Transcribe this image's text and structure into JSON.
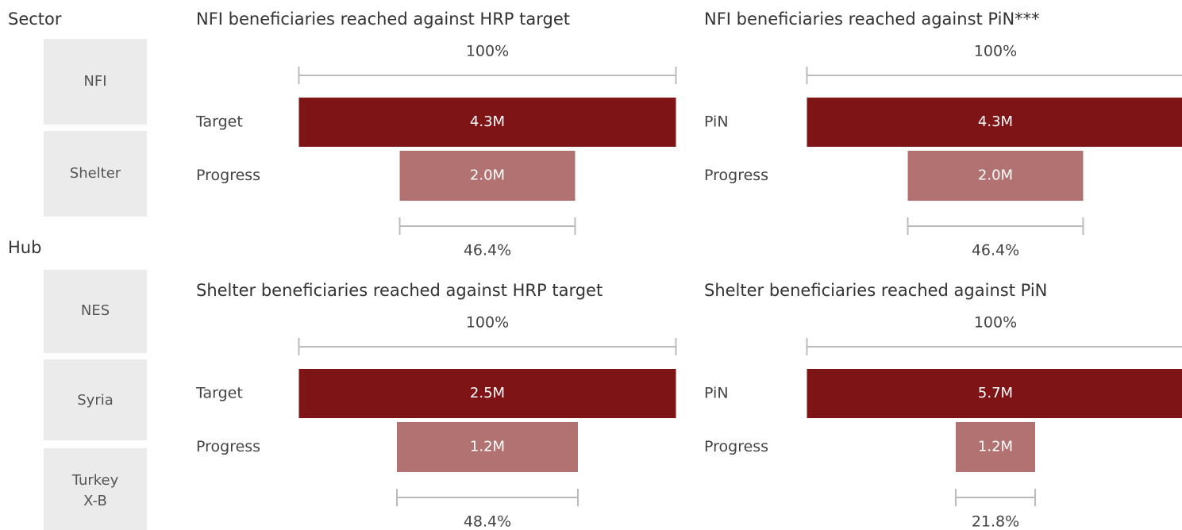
{
  "sidebar": {
    "sector_label": "Sector",
    "sector_buttons": [
      "NFI",
      "Shelter"
    ],
    "hub_label": "Hub",
    "hub_buttons": [
      "NES",
      "Syria",
      [
        "Turkey",
        "X-B"
      ]
    ]
  },
  "chart_data": [
    {
      "type": "bar",
      "title": "NFI beneficiaries reached against HRP target",
      "categories": [
        "Target",
        "Progress"
      ],
      "values": [
        4300000,
        2000000
      ],
      "value_labels": [
        "4.3M",
        "2.0M"
      ],
      "colors": [
        "#7f1416",
        "#b37272"
      ],
      "shares": [
        {
          "value": 100,
          "label": "100%"
        },
        {
          "value": 46.4,
          "label": "46.4%"
        }
      ]
    },
    {
      "type": "bar",
      "title": "NFI beneficiaries reached against PiN***",
      "categories": [
        "PiN",
        "Progress"
      ],
      "values": [
        4300000,
        2000000
      ],
      "value_labels": [
        "4.3M",
        "2.0M"
      ],
      "colors": [
        "#7f1416",
        "#b37272"
      ],
      "shares": [
        {
          "value": 100,
          "label": "100%"
        },
        {
          "value": 46.4,
          "label": "46.4%"
        }
      ]
    },
    {
      "type": "bar",
      "title": "Shelter beneficiaries reached against HRP target",
      "categories": [
        "Target",
        "Progress"
      ],
      "values": [
        2500000,
        1200000
      ],
      "value_labels": [
        "2.5M",
        "1.2M"
      ],
      "colors": [
        "#7f1416",
        "#b37272"
      ],
      "shares": [
        {
          "value": 100,
          "label": "100%"
        },
        {
          "value": 48.4,
          "label": "48.4%"
        }
      ]
    },
    {
      "type": "bar",
      "title": "Shelter beneficiaries reached against PiN",
      "categories": [
        "PiN",
        "Progress"
      ],
      "values": [
        5700000,
        1200000
      ],
      "value_labels": [
        "5.7M",
        "1.2M"
      ],
      "colors": [
        "#7f1416",
        "#b37272"
      ],
      "shares": [
        {
          "value": 100,
          "label": "100%"
        },
        {
          "value": 21.8,
          "label": "21.8%"
        }
      ]
    }
  ]
}
